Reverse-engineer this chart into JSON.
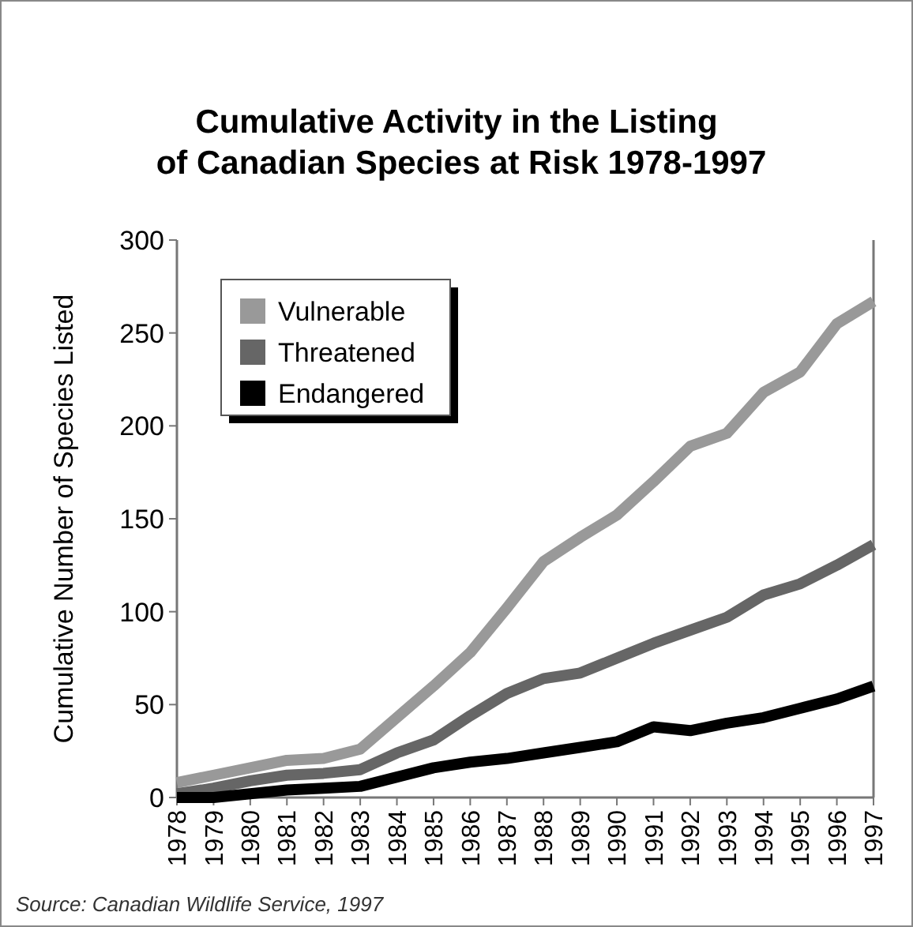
{
  "chart_data": {
    "type": "line",
    "title": "Cumulative Activity in the Listing\nof Canadian Species at Risk 1978-1997",
    "ylabel": "Cumulative Number of Species Listed",
    "x": [
      1978,
      1979,
      1980,
      1981,
      1982,
      1983,
      1984,
      1985,
      1986,
      1987,
      1988,
      1989,
      1990,
      1991,
      1992,
      1993,
      1994,
      1995,
      1996,
      1997
    ],
    "series": [
      {
        "name": "Vulnerable",
        "color": "#999999",
        "values": [
          8,
          12,
          16,
          20,
          21,
          26,
          43,
          60,
          78,
          102,
          127,
          140,
          152,
          170,
          189,
          196,
          218,
          229,
          255,
          267
        ]
      },
      {
        "name": "Threatened",
        "color": "#666666",
        "values": [
          2,
          5,
          9,
          12,
          13,
          15,
          24,
          31,
          44,
          56,
          64,
          67,
          75,
          83,
          90,
          97,
          109,
          115,
          125,
          136
        ]
      },
      {
        "name": "Endangered",
        "color": "#000000",
        "values": [
          0,
          0,
          2,
          4,
          5,
          6,
          11,
          16,
          19,
          21,
          24,
          27,
          30,
          38,
          36,
          40,
          43,
          48,
          53,
          60
        ]
      }
    ],
    "xlim": [
      1978,
      1997
    ],
    "xticks": [
      1978,
      1979,
      1980,
      1981,
      1982,
      1983,
      1984,
      1985,
      1986,
      1987,
      1988,
      1989,
      1990,
      1991,
      1992,
      1993,
      1994,
      1995,
      1996,
      1997
    ],
    "ylim": [
      0,
      300
    ],
    "yticks": [
      0,
      50,
      100,
      150,
      200,
      250,
      300
    ],
    "grid": false,
    "legend": "top left",
    "marker": "none",
    "line_style": "solid",
    "annotations": [
      "Source: Canadian Wildlife Service, 1997"
    ]
  }
}
